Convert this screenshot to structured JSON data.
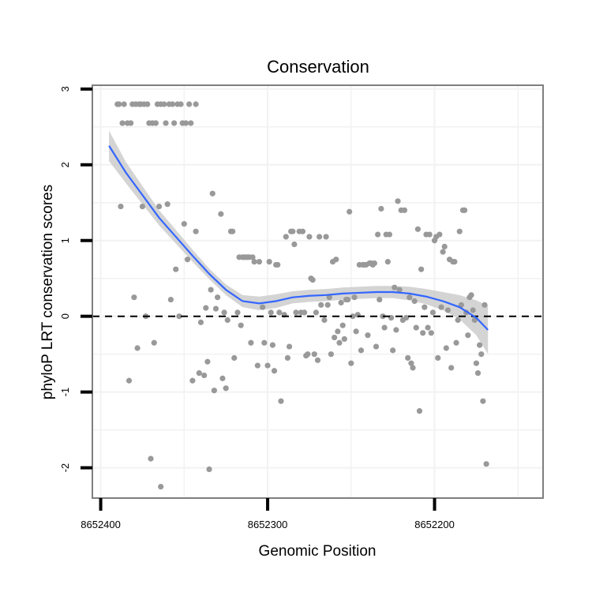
{
  "chart_data": {
    "type": "scatter",
    "title": "Conservation",
    "xlabel": "Genomic Position",
    "ylabel": "phyloP LRT conservation scores",
    "x_reversed": true,
    "xlim": [
      8652405,
      8652135
    ],
    "ylim": [
      -2.4,
      3.05
    ],
    "x_ticks": [
      8652400,
      8652300,
      8652200
    ],
    "x_tick_labels": [
      "8652400",
      "8652300",
      "8652200"
    ],
    "y_ticks": [
      -2,
      -1,
      0,
      1,
      2,
      3
    ],
    "y_tick_labels": [
      "-2",
      "-1",
      "0",
      "1",
      "2",
      "3"
    ],
    "reference_line": {
      "y": 0,
      "style": "dashed"
    },
    "colors": {
      "points": "#999999",
      "smooth": "#3366FF",
      "band": "#CCCCCC",
      "frame": "#7F7F7F",
      "grid": "#F2F2F2"
    },
    "series": [
      {
        "name": "scores",
        "points": [
          [
            8652390,
            2.8
          ],
          [
            8652389,
            2.8
          ],
          [
            8652387,
            2.55
          ],
          [
            8652386,
            2.8
          ],
          [
            8652384,
            2.55
          ],
          [
            8652382,
            2.55
          ],
          [
            8652381,
            2.8
          ],
          [
            8652379,
            2.8
          ],
          [
            8652377,
            2.8
          ],
          [
            8652376,
            2.8
          ],
          [
            8652374,
            2.8
          ],
          [
            8652372,
            2.8
          ],
          [
            8652371,
            2.55
          ],
          [
            8652369,
            2.55
          ],
          [
            8652367,
            2.55
          ],
          [
            8652366,
            2.8
          ],
          [
            8652364,
            2.8
          ],
          [
            8652362,
            2.8
          ],
          [
            8652361,
            2.55
          ],
          [
            8652359,
            2.8
          ],
          [
            8652357,
            2.8
          ],
          [
            8652356,
            2.55
          ],
          [
            8652354,
            2.8
          ],
          [
            8652352,
            2.8
          ],
          [
            8652351,
            2.55
          ],
          [
            8652349,
            2.55
          ],
          [
            8652347,
            2.8
          ],
          [
            8652346,
            2.55
          ],
          [
            8652343,
            2.8
          ],
          [
            8652388,
            1.45
          ],
          [
            8652383,
            -0.85
          ],
          [
            8652380,
            0.25
          ],
          [
            8652378,
            -0.42
          ],
          [
            8652375,
            1.45
          ],
          [
            8652373,
            0.0
          ],
          [
            8652370,
            -1.88
          ],
          [
            8652368,
            -0.35
          ],
          [
            8652365,
            1.45
          ],
          [
            8652364,
            -2.25
          ],
          [
            8652360,
            1.48
          ],
          [
            8652358,
            0.22
          ],
          [
            8652355,
            0.62
          ],
          [
            8652353,
            0.0
          ],
          [
            8652350,
            1.22
          ],
          [
            8652348,
            0.75
          ],
          [
            8652345,
            -0.85
          ],
          [
            8652343,
            1.12
          ],
          [
            8652341,
            -0.75
          ],
          [
            8652340,
            -0.08
          ],
          [
            8652338,
            -0.78
          ],
          [
            8652337,
            0.11
          ],
          [
            8652336,
            -0.6
          ],
          [
            8652335,
            -2.02
          ],
          [
            8652334,
            0.35
          ],
          [
            8652333,
            1.62
          ],
          [
            8652332,
            -0.98
          ],
          [
            8652331,
            0.1
          ],
          [
            8652330,
            0.25
          ],
          [
            8652328,
            1.35
          ],
          [
            8652327,
            -0.82
          ],
          [
            8652326,
            0.05
          ],
          [
            8652325,
            -0.95
          ],
          [
            8652324,
            -0.05
          ],
          [
            8652322,
            1.12
          ],
          [
            8652321,
            1.12
          ],
          [
            8652320,
            -0.55
          ],
          [
            8652318,
            0.05
          ],
          [
            8652317,
            0.78
          ],
          [
            8652316,
            -0.12
          ],
          [
            8652315,
            0.78
          ],
          [
            8652314,
            0.78
          ],
          [
            8652313,
            0.78
          ],
          [
            8652312,
            0.78
          ],
          [
            8652311,
            0.78
          ],
          [
            8652310,
            -0.35
          ],
          [
            8652309,
            0.78
          ],
          [
            8652308,
            0.72
          ],
          [
            8652306,
            -0.65
          ],
          [
            8652305,
            0.72
          ],
          [
            8652303,
            0.12
          ],
          [
            8652302,
            -0.35
          ],
          [
            8652300,
            -0.65
          ],
          [
            8652299,
            0.72
          ],
          [
            8652298,
            0.05
          ],
          [
            8652297,
            -0.38
          ],
          [
            8652296,
            -0.72
          ],
          [
            8652295,
            0.68
          ],
          [
            8652294,
            0.68
          ],
          [
            8652293,
            0.05
          ],
          [
            8652292,
            -1.12
          ],
          [
            8652290,
            0.02
          ],
          [
            8652289,
            1.05
          ],
          [
            8652288,
            -0.55
          ],
          [
            8652287,
            -0.4
          ],
          [
            8652286,
            1.12
          ],
          [
            8652285,
            1.12
          ],
          [
            8652284,
            0.95
          ],
          [
            8652283,
            0.05
          ],
          [
            8652281,
            1.12
          ],
          [
            8652280,
            0.05
          ],
          [
            8652279,
            1.12
          ],
          [
            8652278,
            0.05
          ],
          [
            8652277,
            -0.52
          ],
          [
            8652276,
            -0.5
          ],
          [
            8652275,
            1.05
          ],
          [
            8652274,
            0.5
          ],
          [
            8652273,
            0.48
          ],
          [
            8652272,
            -0.5
          ],
          [
            8652271,
            0.05
          ],
          [
            8652270,
            -0.58
          ],
          [
            8652269,
            1.05
          ],
          [
            8652268,
            0.15
          ],
          [
            8652266,
            -0.05
          ],
          [
            8652265,
            1.05
          ],
          [
            8652264,
            0.15
          ],
          [
            8652263,
            0.25
          ],
          [
            8652262,
            -0.5
          ],
          [
            8652261,
            0.72
          ],
          [
            8652260,
            -0.28
          ],
          [
            8652259,
            0.75
          ],
          [
            8652258,
            -0.2
          ],
          [
            8652257,
            -0.35
          ],
          [
            8652256,
            0.18
          ],
          [
            8652255,
            -0.12
          ],
          [
            8652254,
            -0.3
          ],
          [
            8652253,
            0.22
          ],
          [
            8652252,
            0.22
          ],
          [
            8652251,
            1.38
          ],
          [
            8652250,
            -0.62
          ],
          [
            8652249,
            0.0
          ],
          [
            8652248,
            0.25
          ],
          [
            8652247,
            -0.2
          ],
          [
            8652246,
            0.02
          ],
          [
            8652245,
            0.68
          ],
          [
            8652244,
            -0.45
          ],
          [
            8652243,
            0.68
          ],
          [
            8652242,
            0.68
          ],
          [
            8652241,
            0.68
          ],
          [
            8652240,
            -0.25
          ],
          [
            8652239,
            0.7
          ],
          [
            8652238,
            0.7
          ],
          [
            8652237,
            0.68
          ],
          [
            8652236,
            0.7
          ],
          [
            8652235,
            -0.4
          ],
          [
            8652234,
            1.08
          ],
          [
            8652233,
            0.22
          ],
          [
            8652232,
            1.42
          ],
          [
            8652231,
            0.0
          ],
          [
            8652230,
            -0.15
          ],
          [
            8652229,
            1.08
          ],
          [
            8652228,
            0.72
          ],
          [
            8652227,
            1.08
          ],
          [
            8652226,
            -0.02
          ],
          [
            8652225,
            -0.45
          ],
          [
            8652224,
            0.38
          ],
          [
            8652223,
            -0.18
          ],
          [
            8652222,
            1.52
          ],
          [
            8652221,
            0.35
          ],
          [
            8652220,
            1.4
          ],
          [
            8652219,
            -0.05
          ],
          [
            8652218,
            1.4
          ],
          [
            8652217,
            -0.02
          ],
          [
            8652216,
            -0.55
          ],
          [
            8652215,
            0.25
          ],
          [
            8652214,
            -0.62
          ],
          [
            8652213,
            -0.68
          ],
          [
            8652212,
            0.2
          ],
          [
            8652211,
            -0.15
          ],
          [
            8652210,
            1.15
          ],
          [
            8652209,
            -1.25
          ],
          [
            8652208,
            0.62
          ],
          [
            8652207,
            -0.22
          ],
          [
            8652206,
            0.12
          ],
          [
            8652205,
            1.08
          ],
          [
            8652204,
            -0.15
          ],
          [
            8652203,
            1.08
          ],
          [
            8652202,
            -0.22
          ],
          [
            8652201,
            0.05
          ],
          [
            8652200,
            1.0
          ],
          [
            8652199,
            1.05
          ],
          [
            8652198,
            -0.55
          ],
          [
            8652197,
            1.08
          ],
          [
            8652196,
            0.12
          ],
          [
            8652195,
            0.85
          ],
          [
            8652194,
            0.92
          ],
          [
            8652193,
            -0.42
          ],
          [
            8652192,
            0.08
          ],
          [
            8652191,
            0.75
          ],
          [
            8652190,
            -0.68
          ],
          [
            8652189,
            0.72
          ],
          [
            8652188,
            0.72
          ],
          [
            8652187,
            -0.35
          ],
          [
            8652186,
            -0.05
          ],
          [
            8652185,
            1.12
          ],
          [
            8652184,
            0.15
          ],
          [
            8652183,
            1.4
          ],
          [
            8652182,
            1.4
          ],
          [
            8652181,
            0.05
          ],
          [
            8652180,
            -0.25
          ],
          [
            8652179,
            0.25
          ],
          [
            8652178,
            0.28
          ],
          [
            8652177,
            0.08
          ],
          [
            8652176,
            -0.05
          ],
          [
            8652175,
            -0.62
          ],
          [
            8652174,
            -0.75
          ],
          [
            8652173,
            -0.38
          ],
          [
            8652172,
            -0.5
          ],
          [
            8652171,
            -1.12
          ],
          [
            8652170,
            0.15
          ],
          [
            8652169,
            -1.95
          ]
        ]
      },
      {
        "name": "smooth",
        "fit": [
          [
            8652395,
            2.25
          ],
          [
            8652385,
            1.9
          ],
          [
            8652375,
            1.6
          ],
          [
            8652365,
            1.3
          ],
          [
            8652355,
            1.05
          ],
          [
            8652345,
            0.8
          ],
          [
            8652335,
            0.56
          ],
          [
            8652325,
            0.35
          ],
          [
            8652315,
            0.2
          ],
          [
            8652305,
            0.17
          ],
          [
            8652295,
            0.2
          ],
          [
            8652285,
            0.25
          ],
          [
            8652275,
            0.27
          ],
          [
            8652265,
            0.28
          ],
          [
            8652255,
            0.3
          ],
          [
            8652245,
            0.31
          ],
          [
            8652235,
            0.32
          ],
          [
            8652225,
            0.32
          ],
          [
            8652215,
            0.3
          ],
          [
            8652205,
            0.26
          ],
          [
            8652195,
            0.2
          ],
          [
            8652185,
            0.12
          ],
          [
            8652175,
            -0.02
          ],
          [
            8652168,
            -0.18
          ]
        ],
        "lower": [
          [
            8652395,
            2.05
          ],
          [
            8652385,
            1.76
          ],
          [
            8652375,
            1.48
          ],
          [
            8652365,
            1.2
          ],
          [
            8652355,
            0.96
          ],
          [
            8652345,
            0.72
          ],
          [
            8652335,
            0.49
          ],
          [
            8652325,
            0.28
          ],
          [
            8652315,
            0.12
          ],
          [
            8652305,
            0.08
          ],
          [
            8652295,
            0.11
          ],
          [
            8652285,
            0.17
          ],
          [
            8652275,
            0.19
          ],
          [
            8652265,
            0.2
          ],
          [
            8652255,
            0.22
          ],
          [
            8652245,
            0.23
          ],
          [
            8652235,
            0.24
          ],
          [
            8652225,
            0.24
          ],
          [
            8652215,
            0.21
          ],
          [
            8652205,
            0.16
          ],
          [
            8652195,
            0.08
          ],
          [
            8652185,
            -0.04
          ],
          [
            8652175,
            -0.25
          ],
          [
            8652168,
            -0.5
          ]
        ],
        "upper": [
          [
            8652395,
            2.45
          ],
          [
            8652385,
            2.04
          ],
          [
            8652375,
            1.72
          ],
          [
            8652365,
            1.4
          ],
          [
            8652355,
            1.14
          ],
          [
            8652345,
            0.88
          ],
          [
            8652335,
            0.63
          ],
          [
            8652325,
            0.42
          ],
          [
            8652315,
            0.28
          ],
          [
            8652305,
            0.26
          ],
          [
            8652295,
            0.29
          ],
          [
            8652285,
            0.33
          ],
          [
            8652275,
            0.35
          ],
          [
            8652265,
            0.36
          ],
          [
            8652255,
            0.38
          ],
          [
            8652245,
            0.39
          ],
          [
            8652235,
            0.4
          ],
          [
            8652225,
            0.4
          ],
          [
            8652215,
            0.39
          ],
          [
            8652205,
            0.36
          ],
          [
            8652195,
            0.32
          ],
          [
            8652185,
            0.28
          ],
          [
            8652175,
            0.21
          ],
          [
            8652168,
            0.14
          ]
        ]
      }
    ]
  }
}
